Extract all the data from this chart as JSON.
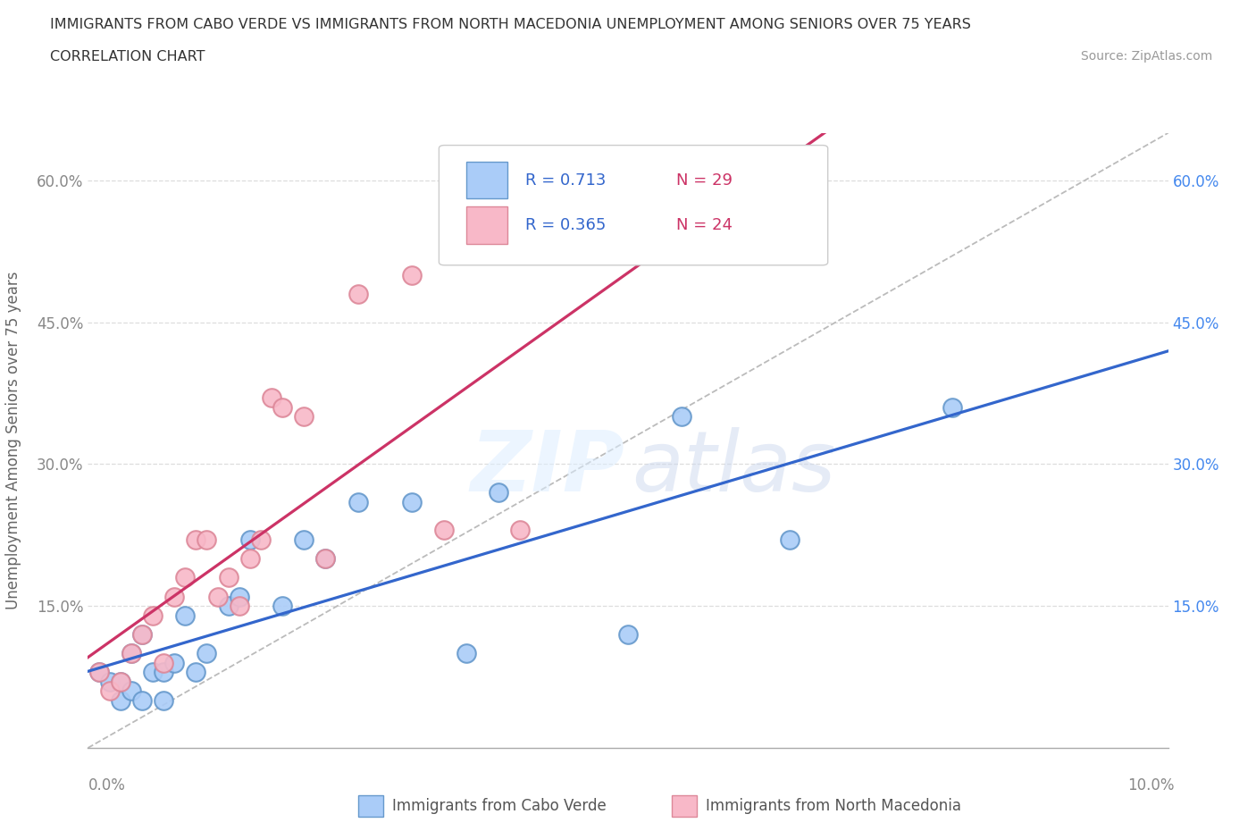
{
  "title_line1": "IMMIGRANTS FROM CABO VERDE VS IMMIGRANTS FROM NORTH MACEDONIA UNEMPLOYMENT AMONG SENIORS OVER 75 YEARS",
  "title_line2": "CORRELATION CHART",
  "source_text": "Source: ZipAtlas.com",
  "ylabel": "Unemployment Among Seniors over 75 years",
  "watermark_zip": "ZIP",
  "watermark_atlas": "atlas",
  "legend_r1": "R = 0.713",
  "legend_n1": "N = 29",
  "legend_r2": "R = 0.365",
  "legend_n2": "N = 24",
  "cabo_verde_color": "#aaccf8",
  "cabo_verde_edge": "#6699cc",
  "north_mac_color": "#f8b8c8",
  "north_mac_edge": "#dd8899",
  "trend_cabo_color": "#3366cc",
  "trend_mac_color": "#cc3366",
  "diagonal_color": "#bbbbbb",
  "ytick_color_left": "#888888",
  "ytick_color_right": "#4488ee",
  "cabo_verde_x": [
    0.001,
    0.002,
    0.003,
    0.003,
    0.004,
    0.004,
    0.005,
    0.005,
    0.006,
    0.007,
    0.007,
    0.008,
    0.009,
    0.01,
    0.011,
    0.013,
    0.014,
    0.015,
    0.018,
    0.02,
    0.022,
    0.025,
    0.03,
    0.035,
    0.038,
    0.05,
    0.055,
    0.065,
    0.08
  ],
  "cabo_verde_y": [
    0.08,
    0.07,
    0.05,
    0.07,
    0.06,
    0.1,
    0.05,
    0.12,
    0.08,
    0.05,
    0.08,
    0.09,
    0.14,
    0.08,
    0.1,
    0.15,
    0.16,
    0.22,
    0.15,
    0.22,
    0.2,
    0.26,
    0.26,
    0.1,
    0.27,
    0.12,
    0.35,
    0.22,
    0.36
  ],
  "north_mac_x": [
    0.001,
    0.002,
    0.003,
    0.004,
    0.005,
    0.006,
    0.007,
    0.008,
    0.009,
    0.01,
    0.011,
    0.012,
    0.013,
    0.014,
    0.015,
    0.016,
    0.017,
    0.018,
    0.02,
    0.022,
    0.025,
    0.03,
    0.033,
    0.04
  ],
  "north_mac_y": [
    0.08,
    0.06,
    0.07,
    0.1,
    0.12,
    0.14,
    0.09,
    0.16,
    0.18,
    0.22,
    0.22,
    0.16,
    0.18,
    0.15,
    0.2,
    0.22,
    0.37,
    0.36,
    0.35,
    0.2,
    0.48,
    0.5,
    0.23,
    0.23
  ],
  "xmin": 0.0,
  "xmax": 0.1,
  "ymin": 0.0,
  "ymax": 0.65,
  "yticks": [
    0.0,
    0.15,
    0.3,
    0.45,
    0.6
  ],
  "background_color": "#ffffff",
  "grid_color": "#dddddd"
}
